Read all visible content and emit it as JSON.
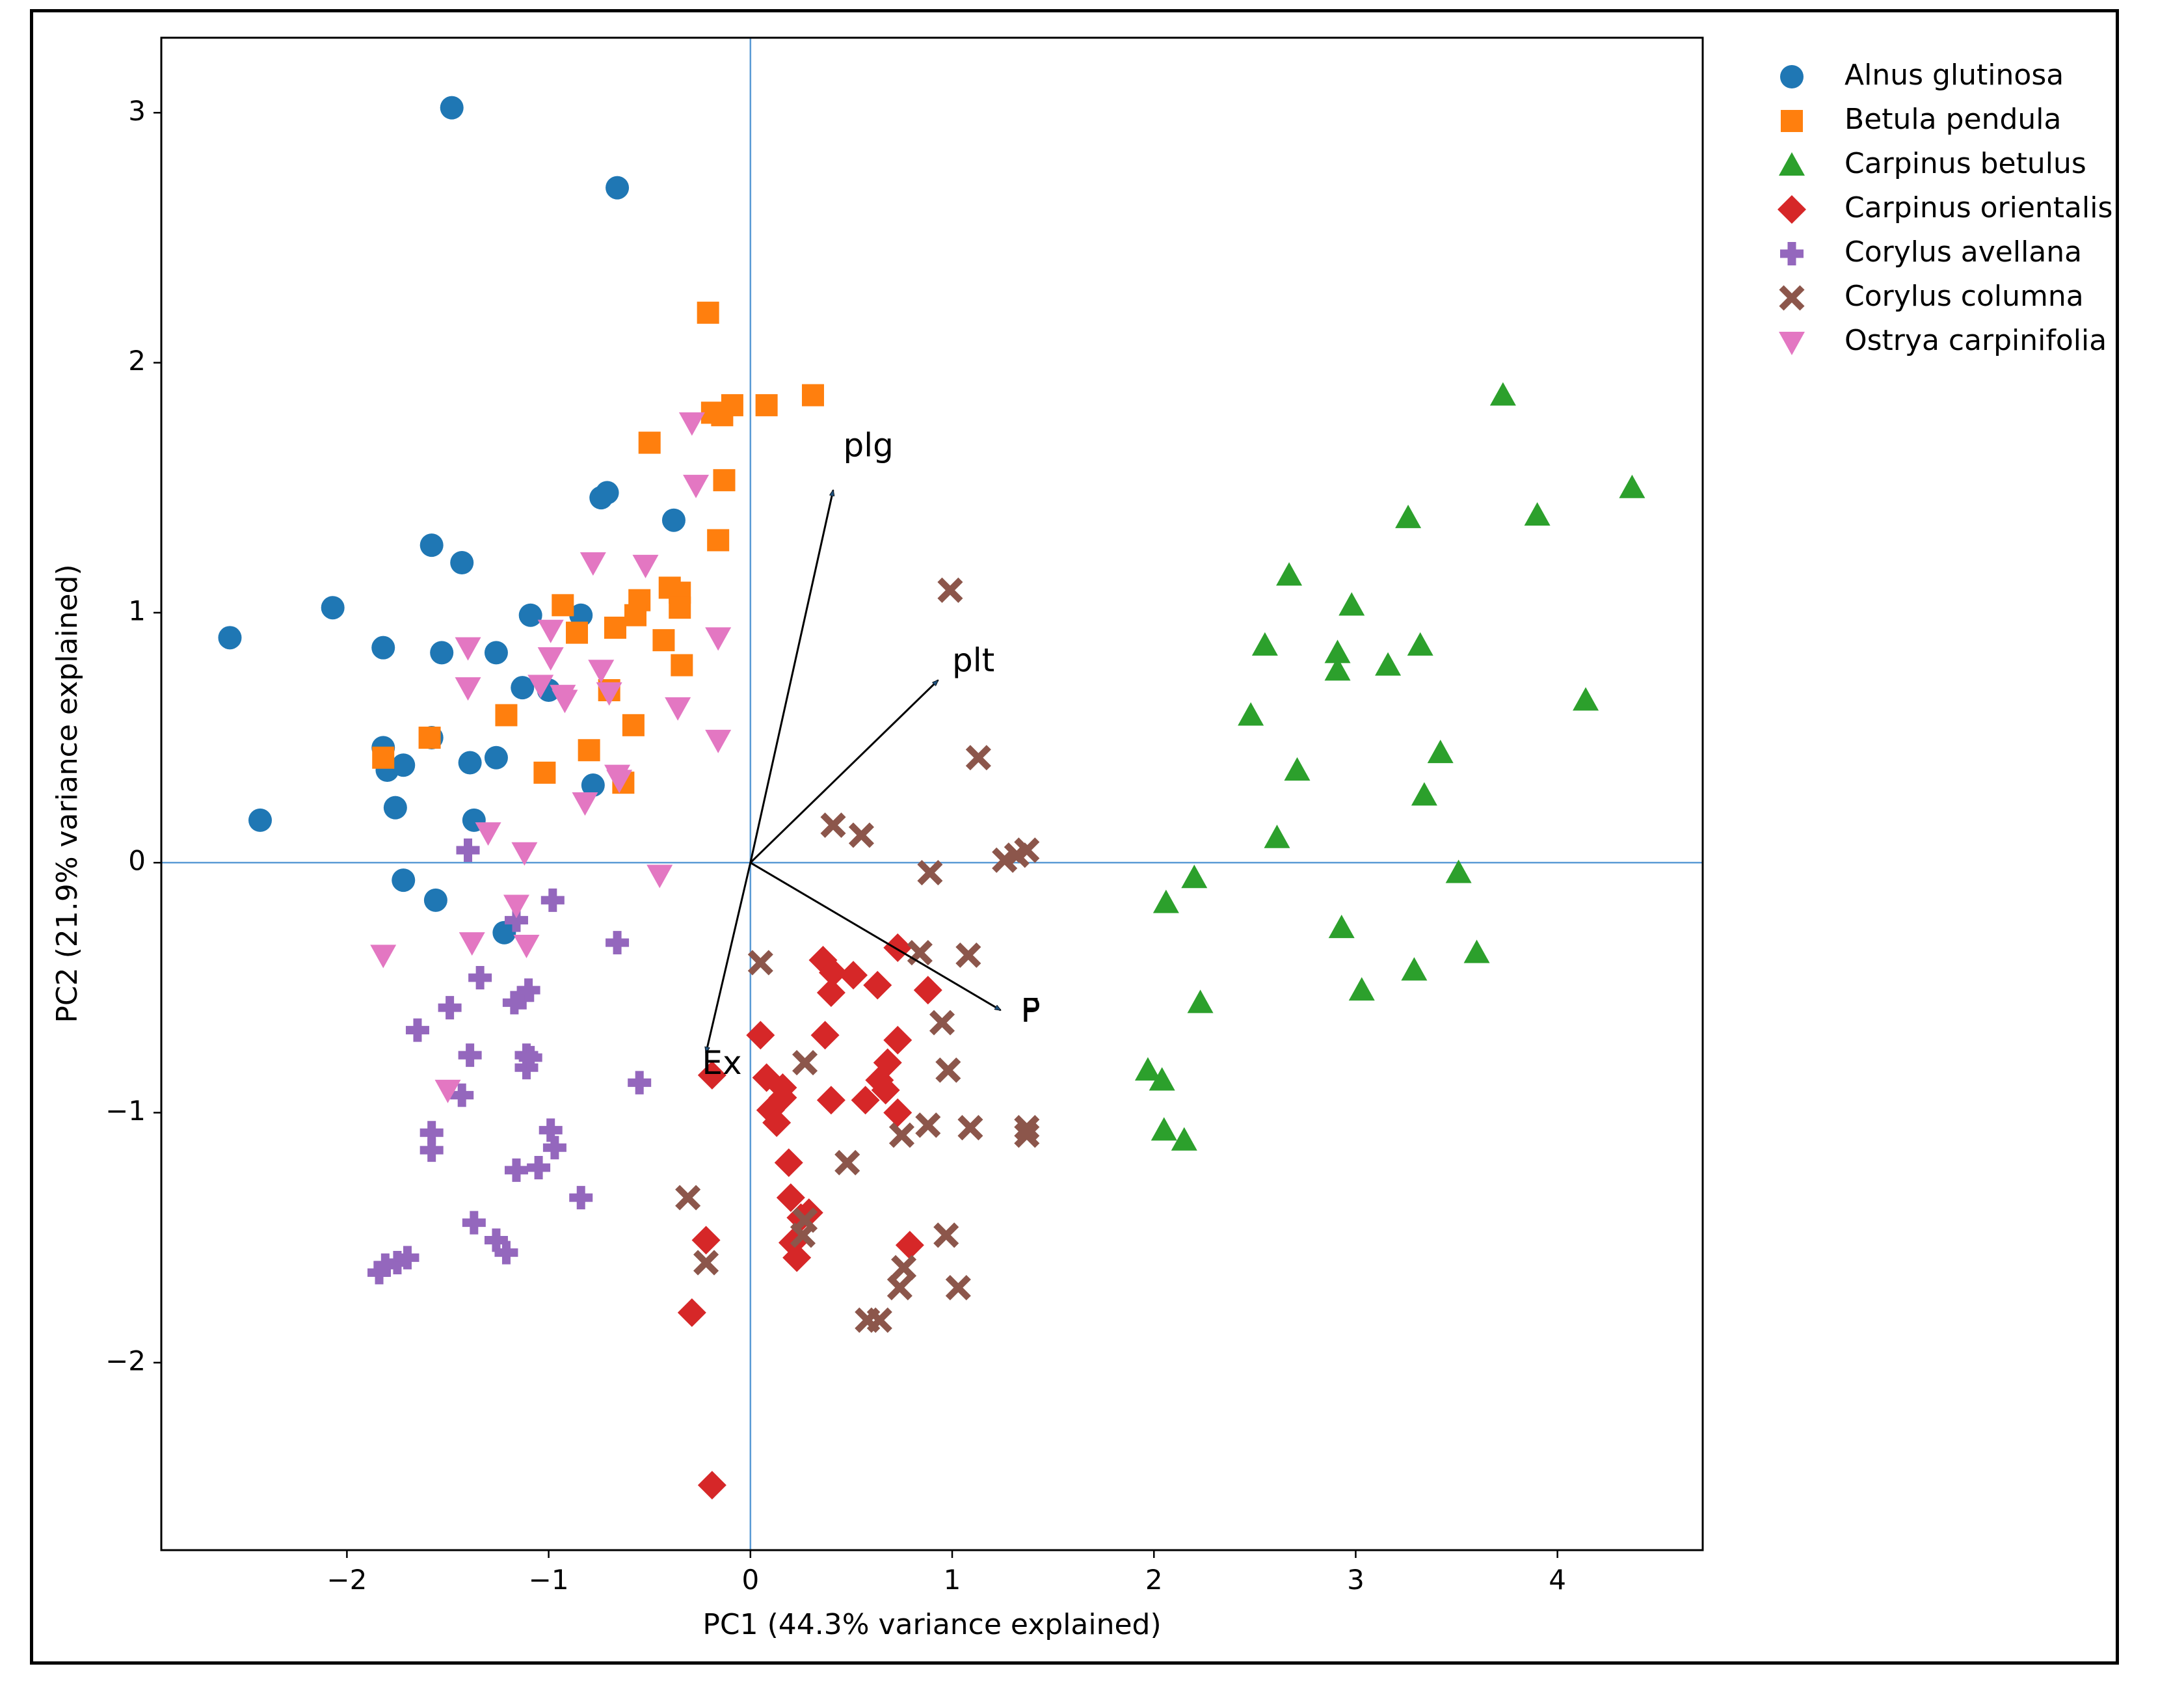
{
  "chart_data": {
    "type": "scatter",
    "title": "",
    "xlabel": "PC1 (44.3% variance explained)",
    "ylabel": "PC2 (21.9% variance explained)",
    "xlim": [
      -2.92,
      4.72
    ],
    "ylim": [
      -2.75,
      3.3
    ],
    "xticks": [
      -2,
      -1,
      0,
      1,
      2,
      3,
      4
    ],
    "xtick_labels": [
      "−2",
      "−1",
      "0",
      "1",
      "2",
      "3",
      "4"
    ],
    "yticks": [
      -2,
      -1,
      0,
      1,
      2,
      3
    ],
    "ytick_labels": [
      "−2",
      "−1",
      "0",
      "1",
      "2",
      "3"
    ],
    "grid": false,
    "zero_lines": true,
    "legend_position": "upper-right-outside",
    "series": [
      {
        "name": "Alnus glutinosa",
        "color": "#1f77b4",
        "marker": "circle",
        "points": [
          [
            -2.58,
            0.9
          ],
          [
            -2.43,
            0.17
          ],
          [
            -2.07,
            1.02
          ],
          [
            -1.82,
            0.86
          ],
          [
            -1.82,
            0.46
          ],
          [
            -1.8,
            0.37
          ],
          [
            -1.72,
            0.39
          ],
          [
            -1.76,
            0.22
          ],
          [
            -1.58,
            1.27
          ],
          [
            -1.53,
            0.84
          ],
          [
            -1.58,
            0.5
          ],
          [
            -1.43,
            1.2
          ],
          [
            -1.48,
            3.02
          ],
          [
            -1.39,
            0.4
          ],
          [
            -1.37,
            0.17
          ],
          [
            -1.26,
            0.42
          ],
          [
            -1.26,
            0.84
          ],
          [
            -1.13,
            0.7
          ],
          [
            -1.09,
            0.99
          ],
          [
            -1.0,
            0.69
          ],
          [
            -0.84,
            0.99
          ],
          [
            -0.78,
            0.31
          ],
          [
            -0.74,
            1.46
          ],
          [
            -0.71,
            1.48
          ],
          [
            -0.66,
            2.7
          ],
          [
            -0.38,
            1.37
          ],
          [
            -1.72,
            -0.07
          ],
          [
            -1.56,
            -0.15
          ],
          [
            -1.22,
            -0.28
          ]
        ]
      },
      {
        "name": "Betula pendula",
        "color": "#ff7f0e",
        "marker": "square",
        "points": [
          [
            -1.82,
            0.42
          ],
          [
            -1.59,
            0.5
          ],
          [
            -1.21,
            0.59
          ],
          [
            -1.02,
            0.36
          ],
          [
            -0.93,
            1.03
          ],
          [
            -0.86,
            0.92
          ],
          [
            -0.8,
            0.45
          ],
          [
            -0.7,
            0.69
          ],
          [
            -0.67,
            0.94
          ],
          [
            -0.63,
            0.32
          ],
          [
            -0.58,
            0.55
          ],
          [
            -0.55,
            1.05
          ],
          [
            -0.57,
            0.99
          ],
          [
            -0.5,
            1.68
          ],
          [
            -0.43,
            0.89
          ],
          [
            -0.4,
            1.1
          ],
          [
            -0.35,
            1.08
          ],
          [
            -0.35,
            1.02
          ],
          [
            -0.34,
            0.79
          ],
          [
            -0.21,
            2.2
          ],
          [
            -0.19,
            1.8
          ],
          [
            -0.16,
            1.29
          ],
          [
            -0.13,
            1.53
          ],
          [
            -0.14,
            1.79
          ],
          [
            -0.09,
            1.83
          ],
          [
            0.08,
            1.83
          ],
          [
            0.31,
            1.87
          ]
        ]
      },
      {
        "name": "Carpinus betulus",
        "color": "#2ca02c",
        "marker": "triangle-up",
        "points": [
          [
            1.97,
            -0.83
          ],
          [
            2.04,
            -0.87
          ],
          [
            2.05,
            -1.07
          ],
          [
            2.06,
            -0.16
          ],
          [
            2.15,
            -1.11
          ],
          [
            2.2,
            -0.06
          ],
          [
            2.23,
            -0.56
          ],
          [
            2.48,
            0.59
          ],
          [
            2.55,
            0.87
          ],
          [
            2.61,
            0.1
          ],
          [
            2.67,
            1.15
          ],
          [
            2.71,
            0.37
          ],
          [
            2.91,
            0.84
          ],
          [
            2.91,
            0.77
          ],
          [
            2.93,
            -0.26
          ],
          [
            2.98,
            1.03
          ],
          [
            3.03,
            -0.51
          ],
          [
            3.16,
            0.79
          ],
          [
            3.26,
            1.38
          ],
          [
            3.29,
            -0.43
          ],
          [
            3.32,
            0.87
          ],
          [
            3.34,
            0.27
          ],
          [
            3.42,
            0.44
          ],
          [
            3.51,
            -0.04
          ],
          [
            3.6,
            -0.36
          ],
          [
            3.73,
            1.87
          ],
          [
            3.9,
            1.39
          ],
          [
            4.14,
            0.65
          ],
          [
            4.37,
            1.5
          ]
        ]
      },
      {
        "name": "Carpinus orientalis",
        "color": "#d62728",
        "marker": "diamond",
        "points": [
          [
            -0.29,
            -1.8
          ],
          [
            -0.22,
            -1.51
          ],
          [
            -0.19,
            -0.85
          ],
          [
            -0.19,
            -2.49
          ],
          [
            0.05,
            -0.69
          ],
          [
            0.08,
            -0.86
          ],
          [
            0.1,
            -0.99
          ],
          [
            0.13,
            -1.04
          ],
          [
            0.16,
            -0.94
          ],
          [
            0.16,
            -0.9
          ],
          [
            0.19,
            -1.2
          ],
          [
            0.2,
            -1.34
          ],
          [
            0.21,
            -1.52
          ],
          [
            0.23,
            -1.58
          ],
          [
            0.25,
            -1.42
          ],
          [
            0.29,
            -1.4
          ],
          [
            0.36,
            -0.39
          ],
          [
            0.37,
            -0.69
          ],
          [
            0.4,
            -0.95
          ],
          [
            0.4,
            -0.52
          ],
          [
            0.41,
            -0.44
          ],
          [
            0.51,
            -0.45
          ],
          [
            0.57,
            -0.95
          ],
          [
            0.63,
            -0.49
          ],
          [
            0.64,
            -0.87
          ],
          [
            0.67,
            -0.91
          ],
          [
            0.68,
            -0.8
          ],
          [
            0.73,
            -0.71
          ],
          [
            0.73,
            -0.34
          ],
          [
            0.73,
            -1.0
          ],
          [
            0.79,
            -1.53
          ],
          [
            0.88,
            -0.51
          ]
        ]
      },
      {
        "name": "Corylus avellana",
        "color": "#9467bd",
        "marker": "plus",
        "points": [
          [
            -1.84,
            -1.64
          ],
          [
            -1.81,
            -1.61
          ],
          [
            -1.75,
            -1.6
          ],
          [
            -1.7,
            -1.58
          ],
          [
            -1.65,
            -0.67
          ],
          [
            -1.58,
            -1.08
          ],
          [
            -1.58,
            -1.15
          ],
          [
            -1.49,
            -0.58
          ],
          [
            -1.43,
            -0.93
          ],
          [
            -1.4,
            0.05
          ],
          [
            -1.39,
            -0.77
          ],
          [
            -1.37,
            -1.44
          ],
          [
            -1.34,
            -0.46
          ],
          [
            -1.26,
            -1.51
          ],
          [
            -1.21,
            -1.56
          ],
          [
            -1.17,
            -0.56
          ],
          [
            -1.16,
            -1.23
          ],
          [
            -1.13,
            -0.54
          ],
          [
            -1.11,
            -0.77
          ],
          [
            -1.11,
            -0.82
          ],
          [
            -1.1,
            -0.51
          ],
          [
            -1.09,
            -0.78
          ],
          [
            -1.05,
            -1.22
          ],
          [
            -0.99,
            -1.07
          ],
          [
            -0.97,
            -1.14
          ],
          [
            -0.98,
            -0.15
          ],
          [
            -0.84,
            -1.34
          ],
          [
            -0.66,
            -0.32
          ],
          [
            -0.55,
            -0.88
          ],
          [
            -1.16,
            -0.23
          ]
        ]
      },
      {
        "name": "Corylus columna",
        "color": "#8c564b",
        "marker": "x",
        "points": [
          [
            -0.31,
            -1.34
          ],
          [
            -0.22,
            -1.6
          ],
          [
            0.05,
            -0.4
          ],
          [
            0.27,
            -0.8
          ],
          [
            0.26,
            -1.49
          ],
          [
            0.27,
            -1.43
          ],
          [
            0.41,
            0.15
          ],
          [
            0.48,
            -1.2
          ],
          [
            0.55,
            0.11
          ],
          [
            0.58,
            -1.83
          ],
          [
            0.64,
            -1.83
          ],
          [
            0.74,
            -1.7
          ],
          [
            0.75,
            -1.09
          ],
          [
            0.76,
            -1.62
          ],
          [
            0.84,
            -0.36
          ],
          [
            0.88,
            -1.05
          ],
          [
            0.89,
            -0.04
          ],
          [
            0.95,
            -0.64
          ],
          [
            0.97,
            -1.49
          ],
          [
            0.98,
            -0.83
          ],
          [
            1.03,
            -1.7
          ],
          [
            1.08,
            -0.37
          ],
          [
            1.09,
            -1.06
          ],
          [
            0.99,
            1.09
          ],
          [
            1.13,
            0.42
          ],
          [
            1.26,
            0.01
          ],
          [
            1.32,
            0.03
          ],
          [
            1.37,
            0.05
          ],
          [
            1.37,
            -1.06
          ],
          [
            1.37,
            -1.09
          ]
        ]
      },
      {
        "name": "Ostrya carpinifolia",
        "color": "#e377c2",
        "marker": "triangle-down",
        "points": [
          [
            -1.82,
            -0.37
          ],
          [
            -1.5,
            -0.91
          ],
          [
            -1.4,
            0.7
          ],
          [
            -1.4,
            0.86
          ],
          [
            -1.38,
            -0.32
          ],
          [
            -1.3,
            0.12
          ],
          [
            -1.16,
            -0.17
          ],
          [
            -1.12,
            0.04
          ],
          [
            -1.11,
            -0.33
          ],
          [
            -1.04,
            0.71
          ],
          [
            -0.99,
            0.82
          ],
          [
            -0.99,
            0.93
          ],
          [
            -0.93,
            0.67
          ],
          [
            -0.92,
            0.65
          ],
          [
            -0.82,
            0.24
          ],
          [
            -0.78,
            1.2
          ],
          [
            -0.74,
            0.77
          ],
          [
            -0.7,
            0.68
          ],
          [
            -0.66,
            0.35
          ],
          [
            -0.65,
            0.33
          ],
          [
            -0.52,
            1.19
          ],
          [
            -0.45,
            -0.05
          ],
          [
            -0.36,
            0.62
          ],
          [
            -0.29,
            1.76
          ],
          [
            -0.27,
            1.51
          ],
          [
            -0.16,
            0.9
          ],
          [
            -0.16,
            0.49
          ]
        ]
      }
    ],
    "loadings": [
      {
        "label": "plg",
        "x": 0.41,
        "y": 1.49,
        "label_x": 0.46,
        "label_y": 1.66
      },
      {
        "label": "plt",
        "x": 0.93,
        "y": 0.73,
        "label_x": 1.0,
        "label_y": 0.8
      },
      {
        "label": "F",
        "x": 1.24,
        "y": -0.59,
        "label_x": 1.34,
        "label_y": -0.6
      },
      {
        "label": "P",
        "x": 1.24,
        "y": -0.59,
        "label_x": 1.34,
        "label_y": -0.6
      },
      {
        "label": "Ex",
        "x": -0.22,
        "y": -0.76,
        "label_x": -0.24,
        "label_y": -0.81
      }
    ]
  }
}
